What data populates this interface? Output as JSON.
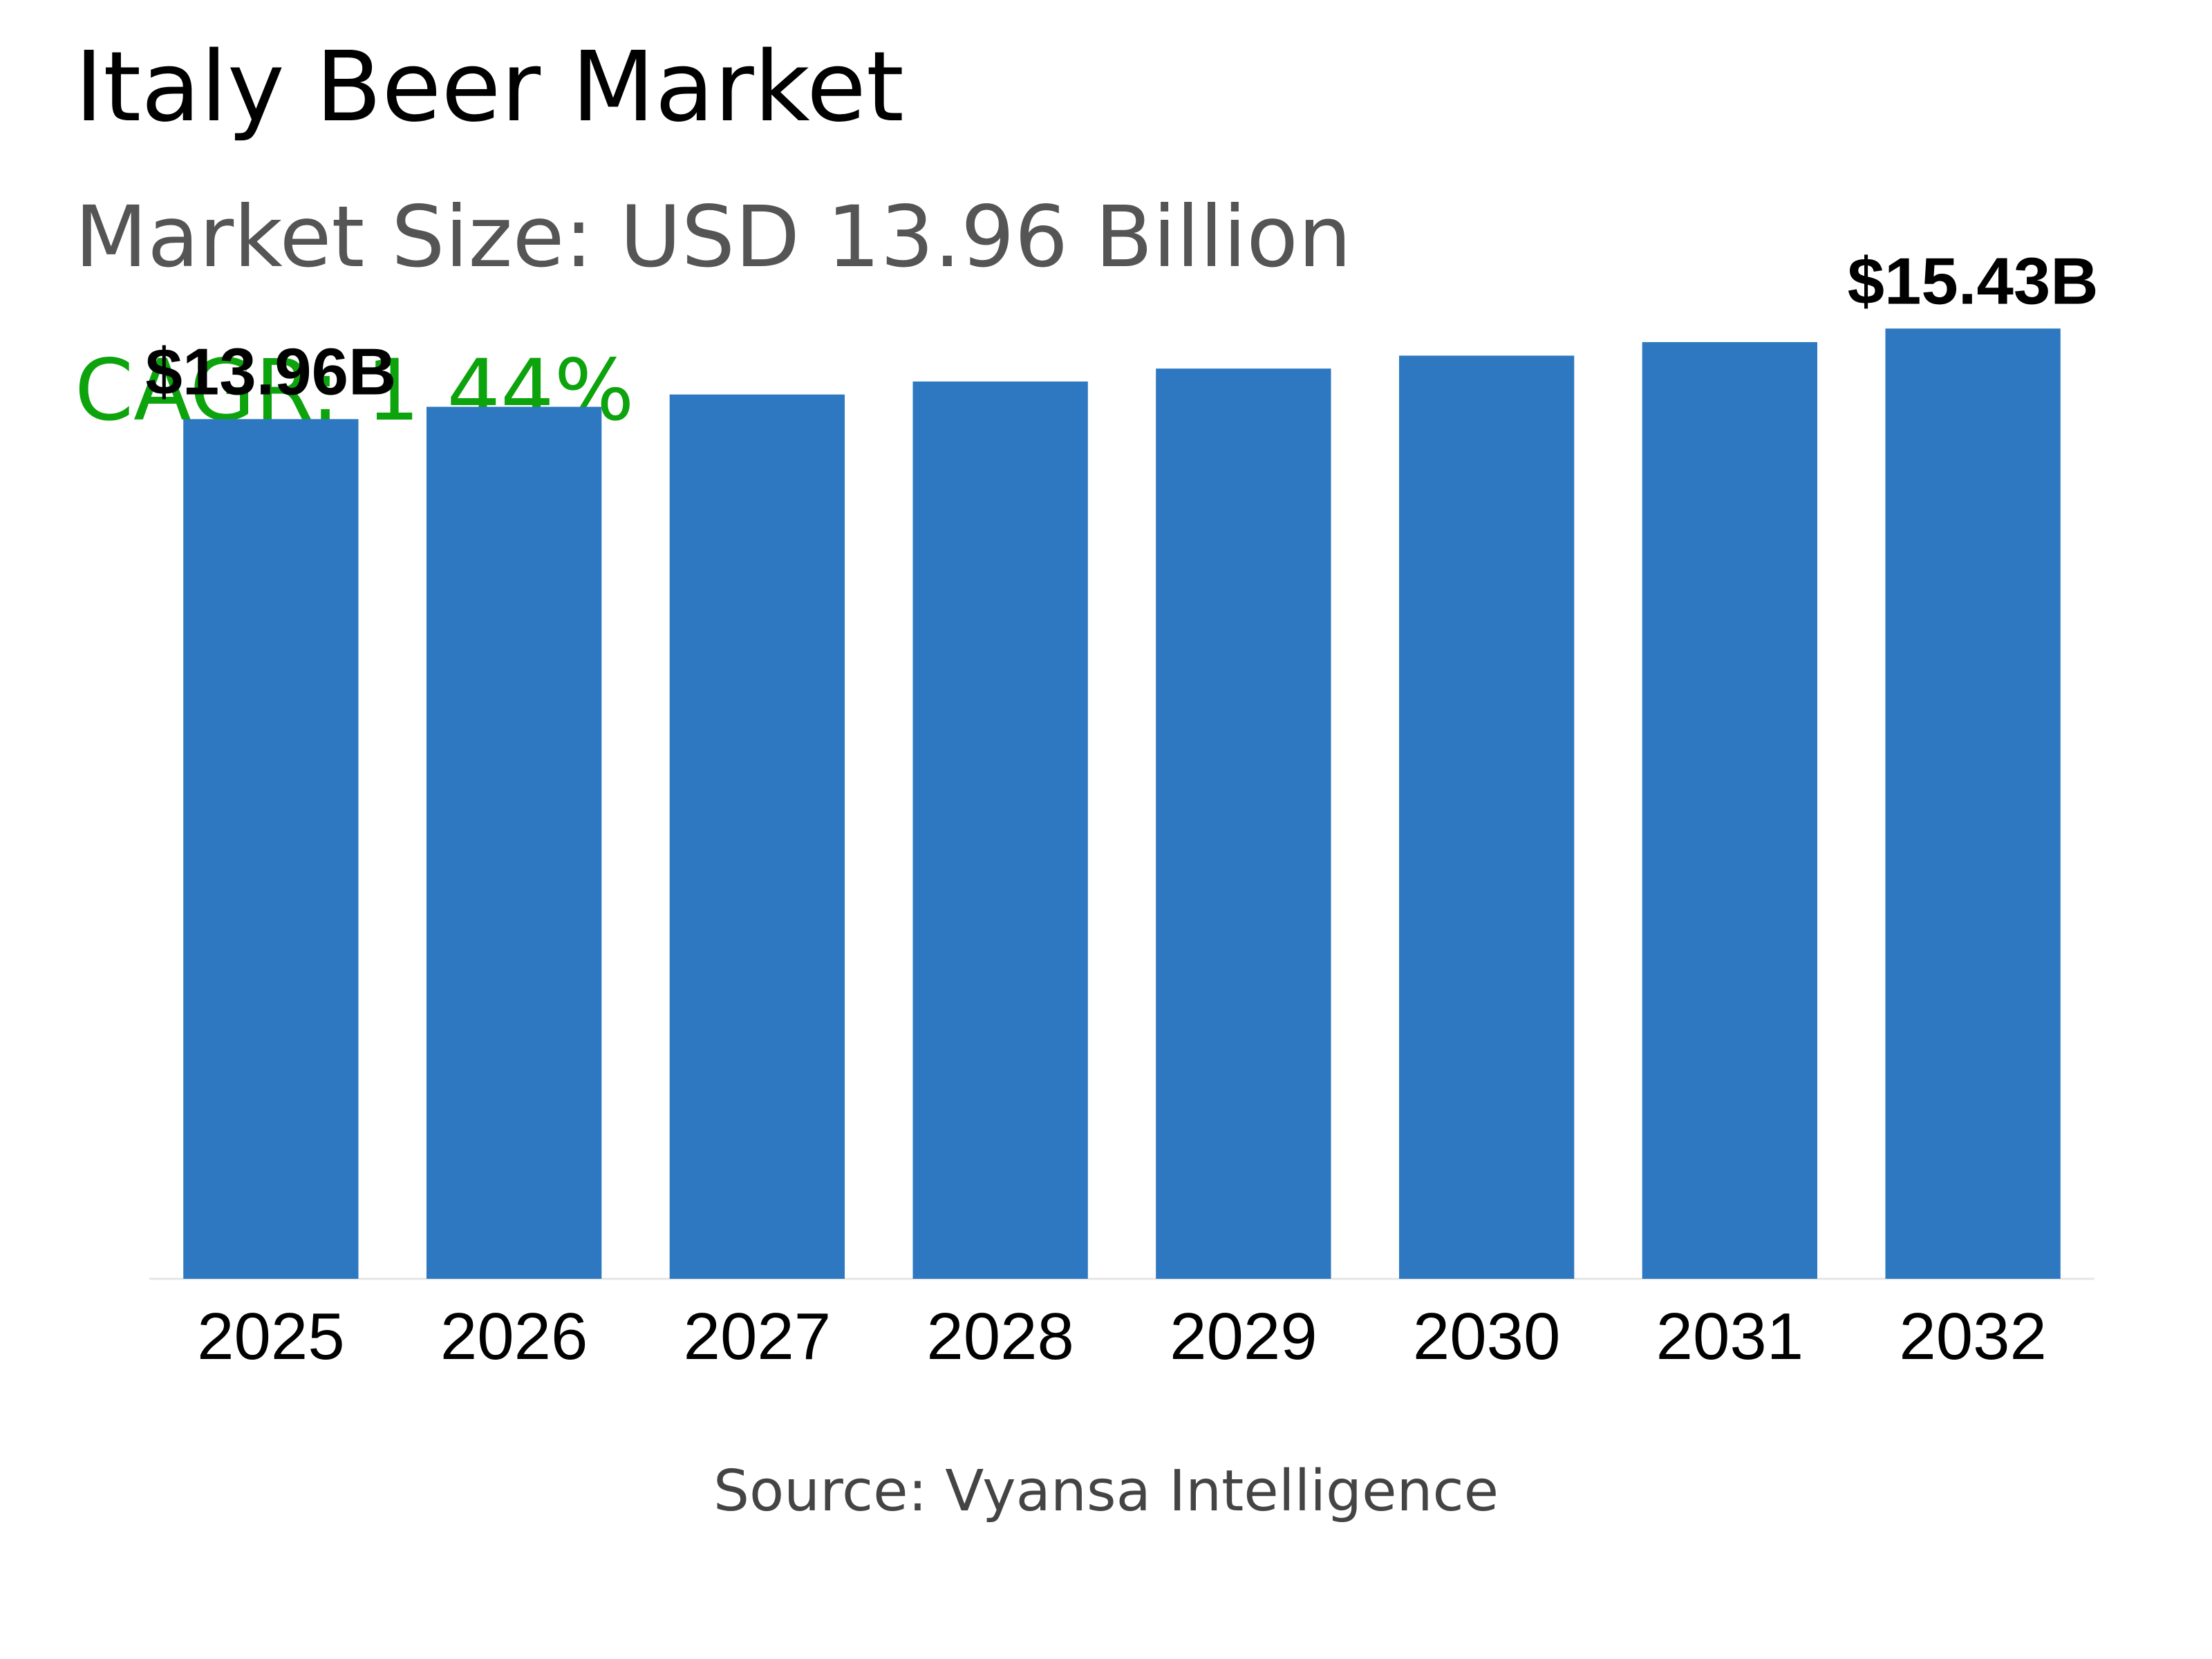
{
  "header": {
    "title": "Italy Beer Market",
    "subtitle": "Market Size: USD 13.96 Billion",
    "cagr": "CAGR: 1.44%"
  },
  "footer": {
    "source": "Source: Vyansa Intelligence"
  },
  "colors": {
    "bar": "#2d78c0",
    "cagr": "#0ca30c",
    "subtitle": "#555555",
    "source": "#444444"
  },
  "chart_data": {
    "type": "bar",
    "categories": [
      "2025",
      "2026",
      "2027",
      "2028",
      "2029",
      "2030",
      "2031",
      "2032"
    ],
    "values": [
      13.96,
      14.16,
      14.36,
      14.57,
      14.78,
      14.99,
      15.21,
      15.43
    ],
    "data_labels": [
      {
        "category": "2025",
        "text": "$13.96B"
      },
      {
        "category": "2032",
        "text": "$15.43B"
      }
    ],
    "title": "Italy Beer Market",
    "xlabel": "",
    "ylabel": "",
    "ylim": [
      0,
      16.5
    ],
    "grid": false,
    "legend": "none"
  }
}
